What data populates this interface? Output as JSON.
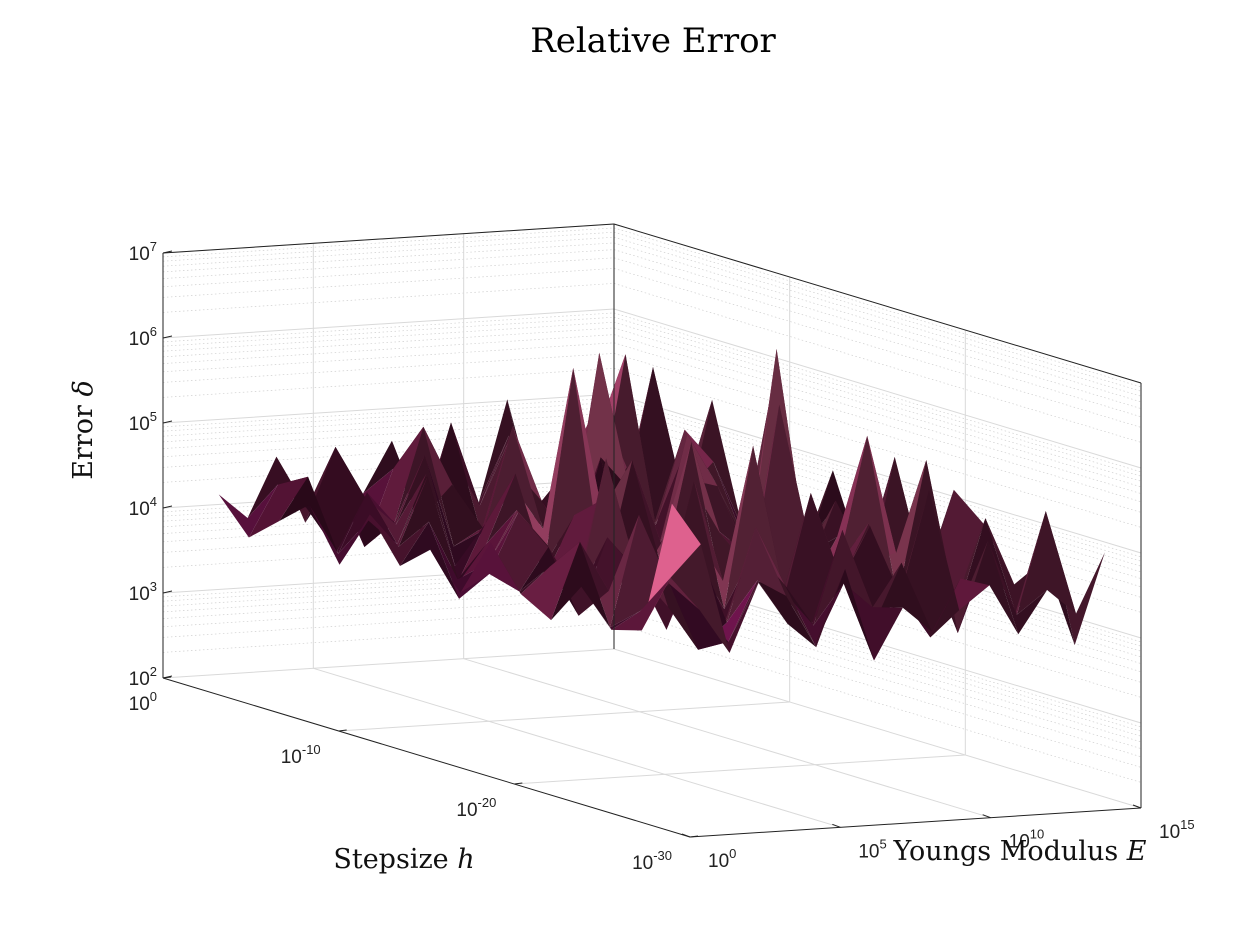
{
  "chart_data": {
    "type": "surface",
    "title": "Relative Error",
    "xlabel": "Stepsize h",
    "ylabel": "Youngs Modulus E",
    "zlabel": "Error δ",
    "x_axis": {
      "scale": "log",
      "range": [
        1e-30,
        1
      ],
      "ticks": [
        {
          "base": "10",
          "exp": "0"
        },
        {
          "base": "10",
          "exp": "-10"
        },
        {
          "base": "10",
          "exp": "-20"
        },
        {
          "base": "10",
          "exp": "-30"
        }
      ]
    },
    "y_axis": {
      "scale": "log",
      "range": [
        1,
        1000000000000000.0
      ],
      "ticks": [
        {
          "base": "10",
          "exp": "0"
        },
        {
          "base": "10",
          "exp": "5"
        },
        {
          "base": "10",
          "exp": "10"
        },
        {
          "base": "10",
          "exp": "15"
        }
      ]
    },
    "z_axis": {
      "scale": "log",
      "range": [
        100,
        10000000
      ],
      "ticks": [
        {
          "base": "10",
          "exp": "2"
        },
        {
          "base": "10",
          "exp": "3"
        },
        {
          "base": "10",
          "exp": "4"
        },
        {
          "base": "10",
          "exp": "5"
        },
        {
          "base": "10",
          "exp": "6"
        },
        {
          "base": "10",
          "exp": "7"
        }
      ]
    },
    "grid": true,
    "colormap": [
      "#c8169e",
      "#5a1538",
      "#f06a9a",
      "#e8a257",
      "#ffec00"
    ],
    "surface_grid": {
      "rows": 16,
      "cols": 16,
      "log10_error": [
        [
          4.5,
          3.6,
          5.3,
          3.9,
          4.4,
          3.7,
          4.9,
          3.9,
          5.2,
          3.8,
          5.1,
          4.8,
          4.2,
          4.6,
          3.7,
          4.9
        ],
        [
          3.8,
          5.6,
          4.2,
          4.7,
          3.9,
          5.9,
          4.0,
          4.6,
          3.6,
          5.4,
          4.1,
          3.9,
          5.0,
          4.0,
          5.3,
          4.2
        ],
        [
          4.9,
          4.1,
          3.9,
          5.1,
          4.6,
          4.0,
          5.7,
          3.8,
          4.8,
          4.2,
          4.4,
          5.6,
          3.9,
          4.7,
          4.1,
          4.5
        ],
        [
          4.1,
          4.8,
          5.9,
          4.0,
          5.0,
          4.4,
          3.7,
          6.5,
          4.2,
          4.5,
          5.8,
          4.0,
          4.6,
          3.8,
          5.0,
          4.0
        ],
        [
          3.9,
          4.4,
          4.0,
          4.7,
          3.8,
          5.3,
          4.8,
          4.1,
          5.2,
          3.9,
          4.3,
          4.9,
          4.1,
          5.5,
          4.2,
          4.6
        ],
        [
          5.2,
          3.8,
          4.6,
          5.5,
          4.3,
          4.0,
          4.9,
          4.4,
          3.8,
          6.1,
          4.6,
          4.2,
          5.0,
          4.3,
          3.9,
          4.7
        ],
        [
          4.0,
          4.9,
          4.2,
          3.9,
          6.2,
          4.7,
          4.1,
          5.0,
          4.5,
          4.2,
          3.8,
          5.3,
          4.4,
          3.9,
          4.8,
          4.1
        ],
        [
          4.6,
          4.1,
          5.0,
          4.4,
          4.0,
          5.1,
          3.6,
          4.3,
          5.6,
          4.0,
          4.9,
          4.1,
          3.9,
          5.1,
          4.3,
          4.4
        ],
        [
          3.7,
          5.1,
          3.9,
          4.8,
          4.5,
          3.9,
          4.6,
          5.3,
          4.1,
          4.7,
          4.2,
          5.9,
          4.3,
          4.0,
          4.6,
          3.8
        ],
        [
          4.8,
          4.0,
          4.5,
          4.1,
          5.4,
          4.3,
          6.3,
          3.9,
          4.4,
          3.9,
          5.4,
          4.0,
          4.8,
          4.5,
          3.9,
          4.9
        ],
        [
          4.2,
          4.6,
          5.2,
          3.9,
          4.2,
          4.8,
          4.0,
          4.7,
          5.0,
          4.3,
          4.1,
          4.6,
          4.0,
          5.2,
          4.5,
          4.0
        ],
        [
          4.4,
          3.7,
          4.1,
          5.0,
          3.8,
          4.4,
          5.1,
          4.0,
          3.9,
          5.6,
          4.4,
          3.8,
          4.9,
          4.1,
          4.7,
          4.3
        ],
        [
          3.9,
          4.9,
          4.4,
          4.2,
          4.9,
          3.7,
          4.3,
          4.8,
          4.5,
          4.0,
          4.8,
          4.5,
          4.2,
          3.8,
          4.0,
          4.8
        ],
        [
          4.7,
          4.2,
          3.8,
          4.6,
          4.1,
          5.0,
          3.9,
          4.2,
          4.9,
          4.6,
          3.9,
          4.3,
          5.3,
          4.6,
          4.4,
          4.0
        ],
        [
          4.0,
          4.5,
          4.7,
          3.9,
          4.4,
          4.2,
          4.6,
          3.8,
          4.2,
          4.1,
          4.5,
          4.9,
          4.0,
          4.3,
          4.8,
          5.3
        ],
        [
          4.3,
          3.9,
          4.2,
          4.5,
          3.9,
          4.6,
          4.1,
          4.4,
          4.0,
          4.7,
          4.2,
          4.0,
          4.5,
          4.1,
          4.2,
          5.8
        ]
      ]
    }
  }
}
